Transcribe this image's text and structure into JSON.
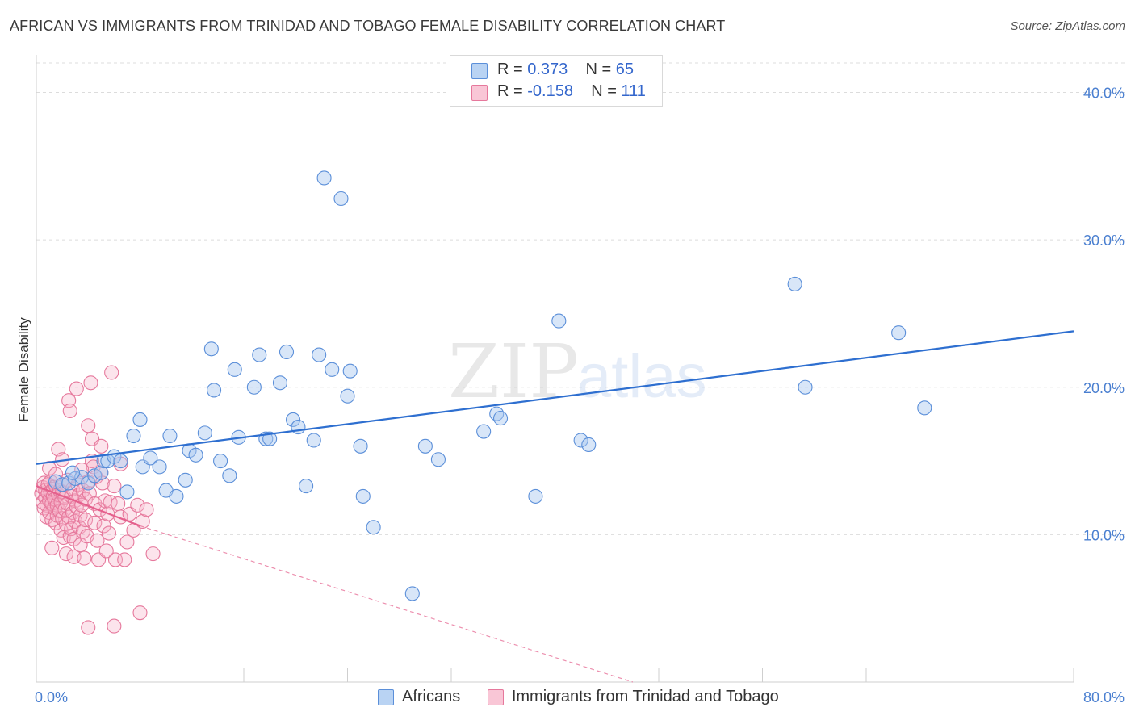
{
  "title": "AFRICAN VS IMMIGRANTS FROM TRINIDAD AND TOBAGO FEMALE DISABILITY CORRELATION CHART",
  "source": "Source: ZipAtlas.com",
  "legend": {
    "rows": [
      {
        "r_label": "R = ",
        "r_value": "0.373",
        "n_label": "N = ",
        "n_value": "65"
      },
      {
        "r_label": "R = ",
        "r_value": "-0.158",
        "n_label": "N = ",
        "n_value": "111"
      }
    ]
  },
  "bottom_legend": [
    "Africans",
    "Immigrants from Trinidad and Tobago"
  ],
  "colors": {
    "blue_fill": "#a9c8ef",
    "blue_stroke": "#5b8fd9",
    "blue_line": "#2e6fd0",
    "pink_fill": "#f6b3c9",
    "pink_stroke": "#e6789c",
    "pink_line": "#e5608d",
    "grid": "#dcdcdc",
    "tick_text": "#4a7fd0"
  },
  "chart_data": {
    "type": "scatter",
    "title": "AFRICAN VS IMMIGRANTS FROM TRINIDAD AND TOBAGO FEMALE DISABILITY CORRELATION CHART",
    "xlabel": "",
    "ylabel": "Female Disability",
    "xlim": [
      0,
      80
    ],
    "ylim": [
      0,
      42
    ],
    "x_tick_labels": [
      "0.0%",
      "80.0%"
    ],
    "y_ticks": [
      10,
      20,
      30,
      40
    ],
    "y_tick_labels": [
      "10.0%",
      "20.0%",
      "30.0%",
      "40.0%"
    ],
    "grid": true,
    "watermark": "ZIPatlas",
    "series": [
      {
        "name": "Africans",
        "color": "#5b8fd9",
        "trend": {
          "x": [
            0,
            80
          ],
          "y": [
            14.8,
            23.8
          ]
        },
        "points": [
          [
            1.5,
            13.6
          ],
          [
            2.0,
            13.4
          ],
          [
            2.5,
            13.5
          ],
          [
            3.0,
            13.8
          ],
          [
            3.5,
            13.9
          ],
          [
            4.0,
            13.5
          ],
          [
            4.5,
            14.0
          ],
          [
            5.0,
            14.2
          ],
          [
            5.2,
            15.0
          ],
          [
            5.5,
            15.0
          ],
          [
            6.0,
            15.3
          ],
          [
            6.5,
            15.0
          ],
          [
            7.0,
            12.9
          ],
          [
            7.5,
            16.7
          ],
          [
            8.0,
            17.8
          ],
          [
            8.2,
            14.6
          ],
          [
            8.8,
            15.2
          ],
          [
            9.5,
            14.6
          ],
          [
            10.0,
            13.0
          ],
          [
            10.3,
            16.7
          ],
          [
            10.8,
            12.6
          ],
          [
            11.5,
            13.7
          ],
          [
            11.8,
            15.7
          ],
          [
            12.3,
            15.4
          ],
          [
            13.0,
            16.9
          ],
          [
            13.5,
            22.6
          ],
          [
            13.7,
            19.8
          ],
          [
            14.2,
            15.0
          ],
          [
            14.9,
            14.0
          ],
          [
            15.3,
            21.2
          ],
          [
            15.6,
            16.6
          ],
          [
            16.8,
            20.0
          ],
          [
            17.2,
            22.2
          ],
          [
            17.7,
            16.5
          ],
          [
            18.0,
            16.5
          ],
          [
            18.8,
            20.3
          ],
          [
            19.3,
            22.4
          ],
          [
            19.8,
            17.8
          ],
          [
            20.2,
            17.3
          ],
          [
            20.8,
            13.3
          ],
          [
            21.4,
            16.4
          ],
          [
            21.8,
            22.2
          ],
          [
            22.8,
            21.2
          ],
          [
            24.0,
            19.4
          ],
          [
            24.2,
            21.1
          ],
          [
            25.0,
            16.0
          ],
          [
            25.2,
            12.6
          ],
          [
            26.0,
            10.5
          ],
          [
            22.2,
            34.2
          ],
          [
            23.5,
            32.8
          ],
          [
            29.0,
            6.0
          ],
          [
            30.0,
            16.0
          ],
          [
            31.0,
            15.1
          ],
          [
            34.5,
            17.0
          ],
          [
            35.5,
            18.2
          ],
          [
            35.8,
            17.9
          ],
          [
            38.5,
            12.6
          ],
          [
            40.3,
            24.5
          ],
          [
            42.0,
            16.4
          ],
          [
            42.6,
            16.1
          ],
          [
            58.5,
            27.0
          ],
          [
            59.3,
            20.0
          ],
          [
            66.5,
            23.7
          ],
          [
            68.5,
            18.6
          ],
          [
            2.8,
            14.2
          ]
        ]
      },
      {
        "name": "Immigrants from Trinidad and Tobago",
        "color": "#e6789c",
        "trend": {
          "x": [
            0,
            8
          ],
          "y": [
            13.3,
            10.6
          ],
          "dash_to": {
            "x": [
              8,
              46
            ],
            "y": [
              10.6,
              0
            ]
          }
        },
        "points": [
          [
            0.4,
            12.8
          ],
          [
            0.5,
            13.2
          ],
          [
            0.5,
            12.2
          ],
          [
            0.6,
            13.5
          ],
          [
            0.6,
            11.8
          ],
          [
            0.7,
            12.5
          ],
          [
            0.7,
            13.0
          ],
          [
            0.8,
            12.0
          ],
          [
            0.8,
            11.2
          ],
          [
            0.9,
            12.8
          ],
          [
            0.9,
            13.4
          ],
          [
            1.0,
            12.3
          ],
          [
            1.0,
            11.5
          ],
          [
            1.1,
            12.9
          ],
          [
            1.1,
            13.6
          ],
          [
            1.2,
            12.1
          ],
          [
            1.2,
            11.0
          ],
          [
            1.3,
            12.6
          ],
          [
            1.3,
            13.1
          ],
          [
            1.4,
            11.8
          ],
          [
            1.4,
            12.4
          ],
          [
            1.5,
            10.8
          ],
          [
            1.5,
            13.3
          ],
          [
            1.6,
            12.0
          ],
          [
            1.6,
            11.3
          ],
          [
            1.7,
            12.7
          ],
          [
            1.7,
            15.8
          ],
          [
            1.8,
            11.6
          ],
          [
            1.8,
            13.0
          ],
          [
            1.9,
            12.2
          ],
          [
            1.9,
            10.3
          ],
          [
            2.0,
            11.1
          ],
          [
            2.0,
            12.9
          ],
          [
            2.1,
            9.8
          ],
          [
            2.1,
            13.4
          ],
          [
            2.2,
            11.7
          ],
          [
            2.2,
            12.5
          ],
          [
            2.3,
            10.7
          ],
          [
            2.3,
            8.7
          ],
          [
            2.4,
            12.1
          ],
          [
            2.4,
            13.7
          ],
          [
            2.5,
            11.2
          ],
          [
            2.5,
            19.1
          ],
          [
            2.6,
            18.4
          ],
          [
            2.6,
            9.9
          ],
          [
            2.7,
            12.6
          ],
          [
            2.7,
            10.4
          ],
          [
            2.8,
            11.5
          ],
          [
            2.8,
            13.1
          ],
          [
            2.9,
            9.7
          ],
          [
            2.9,
            8.5
          ],
          [
            3.0,
            12.3
          ],
          [
            3.0,
            10.9
          ],
          [
            3.1,
            19.9
          ],
          [
            3.1,
            11.9
          ],
          [
            3.2,
            13.4
          ],
          [
            3.3,
            10.5
          ],
          [
            3.3,
            12.7
          ],
          [
            3.4,
            9.3
          ],
          [
            3.4,
            11.3
          ],
          [
            3.5,
            12.0
          ],
          [
            3.6,
            13.0
          ],
          [
            3.6,
            10.2
          ],
          [
            3.7,
            8.4
          ],
          [
            3.8,
            12.4
          ],
          [
            3.8,
            11.0
          ],
          [
            3.9,
            9.9
          ],
          [
            4.0,
            13.6
          ],
          [
            4.0,
            3.7
          ],
          [
            4.1,
            12.8
          ],
          [
            4.2,
            20.3
          ],
          [
            4.3,
            16.5
          ],
          [
            4.3,
            15.0
          ],
          [
            4.4,
            14.6
          ],
          [
            4.5,
            12.1
          ],
          [
            4.5,
            10.8
          ],
          [
            4.6,
            13.9
          ],
          [
            4.7,
            9.6
          ],
          [
            4.8,
            8.3
          ],
          [
            4.9,
            11.7
          ],
          [
            5.0,
            14.2
          ],
          [
            5.1,
            13.5
          ],
          [
            5.2,
            10.6
          ],
          [
            5.3,
            12.3
          ],
          [
            5.4,
            8.9
          ],
          [
            5.5,
            11.4
          ],
          [
            5.6,
            10.1
          ],
          [
            5.7,
            12.2
          ],
          [
            5.8,
            21.0
          ],
          [
            6.0,
            3.8
          ],
          [
            6.1,
            8.3
          ],
          [
            6.3,
            12.1
          ],
          [
            6.5,
            11.2
          ],
          [
            6.8,
            8.3
          ],
          [
            7.0,
            9.5
          ],
          [
            7.2,
            11.4
          ],
          [
            7.5,
            10.3
          ],
          [
            7.8,
            12.0
          ],
          [
            8.0,
            4.7
          ],
          [
            8.2,
            10.9
          ],
          [
            8.5,
            11.7
          ],
          [
            9.0,
            8.7
          ],
          [
            1.0,
            14.5
          ],
          [
            1.5,
            14.1
          ],
          [
            2.0,
            15.1
          ],
          [
            3.5,
            14.4
          ],
          [
            4.0,
            17.4
          ],
          [
            5.0,
            16.0
          ],
          [
            6.0,
            13.3
          ],
          [
            6.5,
            14.8
          ],
          [
            1.2,
            9.1
          ]
        ]
      }
    ]
  }
}
